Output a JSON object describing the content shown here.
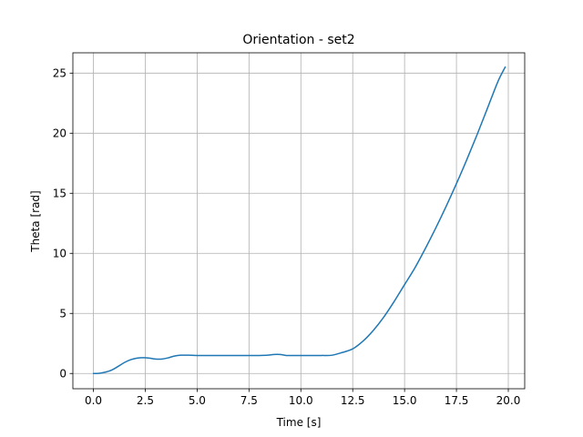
{
  "chart_data": {
    "type": "line",
    "title": "Orientation - set2",
    "xlabel": "Time [s]",
    "ylabel": "Theta [rad]",
    "xlim": [
      -0.99,
      20.79
    ],
    "ylim": [
      -1.27,
      26.69
    ],
    "grid": true,
    "xticks": [
      0.0,
      2.5,
      5.0,
      7.5,
      10.0,
      12.5,
      15.0,
      17.5,
      20.0
    ],
    "xtick_labels": [
      "0.0",
      "2.5",
      "5.0",
      "7.5",
      "10.0",
      "12.5",
      "15.0",
      "17.5",
      "20.0"
    ],
    "yticks": [
      0,
      5,
      10,
      15,
      20,
      25
    ],
    "ytick_labels": [
      "0",
      "5",
      "10",
      "15",
      "20",
      "25"
    ],
    "series": [
      {
        "name": "theta",
        "color": "#1f77b4",
        "x": [
          0.0,
          0.3,
          0.6,
          0.9,
          1.2,
          1.5,
          1.8,
          2.1,
          2.4,
          2.7,
          3.0,
          3.3,
          3.6,
          3.9,
          4.2,
          4.6,
          5.0,
          6.0,
          7.0,
          8.0,
          8.4,
          8.7,
          9.0,
          9.3,
          9.6,
          10.0,
          10.5,
          11.0,
          11.5,
          12.0,
          12.5,
          13.0,
          13.5,
          14.0,
          14.5,
          15.0,
          15.5,
          16.0,
          16.5,
          17.0,
          17.5,
          18.0,
          18.5,
          19.0,
          19.5,
          19.85
        ],
        "y": [
          0.0,
          0.02,
          0.12,
          0.3,
          0.6,
          0.92,
          1.15,
          1.28,
          1.32,
          1.28,
          1.2,
          1.2,
          1.3,
          1.45,
          1.52,
          1.52,
          1.5,
          1.5,
          1.5,
          1.5,
          1.52,
          1.58,
          1.58,
          1.5,
          1.5,
          1.5,
          1.5,
          1.5,
          1.52,
          1.75,
          2.05,
          2.7,
          3.6,
          4.7,
          6.0,
          7.4,
          8.8,
          10.4,
          12.1,
          13.9,
          15.8,
          17.8,
          19.9,
          22.1,
          24.3,
          25.5
        ]
      }
    ]
  }
}
